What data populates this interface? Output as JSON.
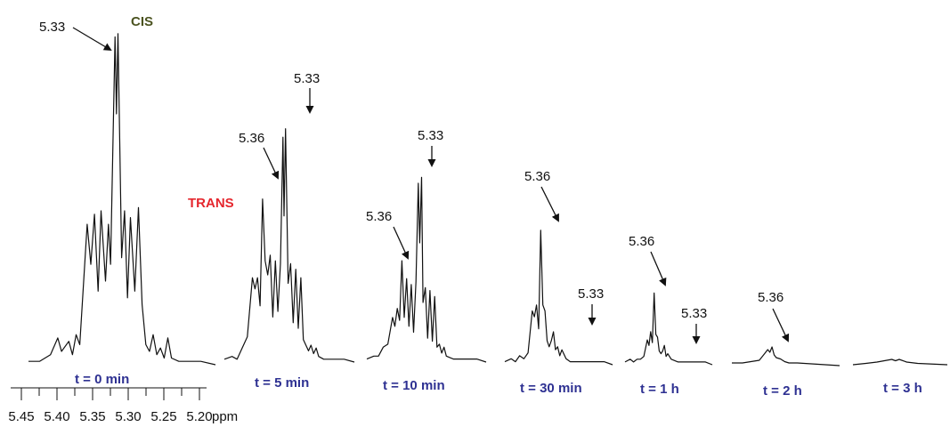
{
  "chart_data": {
    "type": "line",
    "title": "",
    "xlabel": "ppm",
    "ylabel": "",
    "axis": {
      "unit": "ppm",
      "ticks": [
        "5.45",
        "5.40",
        "5.35",
        "5.30",
        "5.25",
        "5.20"
      ],
      "xlim": [
        5.45,
        5.2
      ]
    },
    "isomer_labels": {
      "cis": "CIS",
      "trans": "TRANS",
      "cis_color": "#4b5320",
      "trans_color": "#e5262d"
    },
    "label_color": "#2e3192",
    "series": [
      {
        "time_label": "t = 0   min",
        "annotations": [
          "5.33"
        ],
        "points": [
          [
            5.455,
            0.01
          ],
          [
            5.44,
            0.01
          ],
          [
            5.425,
            0.03
          ],
          [
            5.415,
            0.08
          ],
          [
            5.41,
            0.04
          ],
          [
            5.4,
            0.07
          ],
          [
            5.395,
            0.03
          ],
          [
            5.39,
            0.09
          ],
          [
            5.385,
            0.06
          ],
          [
            5.375,
            0.42
          ],
          [
            5.37,
            0.3
          ],
          [
            5.365,
            0.45
          ],
          [
            5.36,
            0.22
          ],
          [
            5.356,
            0.46
          ],
          [
            5.35,
            0.25
          ],
          [
            5.346,
            0.42
          ],
          [
            5.343,
            0.3
          ],
          [
            5.337,
            0.98
          ],
          [
            5.335,
            0.75
          ],
          [
            5.333,
            0.99
          ],
          [
            5.328,
            0.32
          ],
          [
            5.324,
            0.46
          ],
          [
            5.32,
            0.2
          ],
          [
            5.316,
            0.44
          ],
          [
            5.31,
            0.22
          ],
          [
            5.305,
            0.47
          ],
          [
            5.3,
            0.18
          ],
          [
            5.295,
            0.06
          ],
          [
            5.29,
            0.04
          ],
          [
            5.285,
            0.09
          ],
          [
            5.28,
            0.03
          ],
          [
            5.275,
            0.05
          ],
          [
            5.27,
            0.02
          ],
          [
            5.265,
            0.08
          ],
          [
            5.26,
            0.02
          ],
          [
            5.25,
            0.01
          ],
          [
            5.22,
            0.01
          ],
          [
            5.2,
            0.0
          ]
        ]
      },
      {
        "time_label": "t = 5   min",
        "annotations": [
          "5.36",
          "5.33"
        ],
        "points": [
          [
            5.455,
            0.01
          ],
          [
            5.44,
            0.02
          ],
          [
            5.43,
            0.01
          ],
          [
            5.42,
            0.05
          ],
          [
            5.41,
            0.09
          ],
          [
            5.4,
            0.3
          ],
          [
            5.395,
            0.26
          ],
          [
            5.39,
            0.3
          ],
          [
            5.385,
            0.2
          ],
          [
            5.38,
            0.58
          ],
          [
            5.375,
            0.36
          ],
          [
            5.37,
            0.31
          ],
          [
            5.365,
            0.38
          ],
          [
            5.36,
            0.16
          ],
          [
            5.355,
            0.36
          ],
          [
            5.35,
            0.18
          ],
          [
            5.345,
            0.35
          ],
          [
            5.34,
            0.8
          ],
          [
            5.338,
            0.52
          ],
          [
            5.335,
            0.83
          ],
          [
            5.33,
            0.28
          ],
          [
            5.325,
            0.35
          ],
          [
            5.32,
            0.14
          ],
          [
            5.315,
            0.33
          ],
          [
            5.31,
            0.12
          ],
          [
            5.305,
            0.3
          ],
          [
            5.3,
            0.08
          ],
          [
            5.29,
            0.04
          ],
          [
            5.285,
            0.06
          ],
          [
            5.28,
            0.03
          ],
          [
            5.275,
            0.05
          ],
          [
            5.27,
            0.02
          ],
          [
            5.26,
            0.01
          ],
          [
            5.22,
            0.01
          ],
          [
            5.2,
            0.0
          ]
        ]
      },
      {
        "time_label": "t = 10   min",
        "annotations": [
          "5.36",
          "5.33"
        ],
        "points": [
          [
            5.455,
            0.01
          ],
          [
            5.44,
            0.02
          ],
          [
            5.43,
            0.02
          ],
          [
            5.42,
            0.05
          ],
          [
            5.41,
            0.06
          ],
          [
            5.4,
            0.15
          ],
          [
            5.395,
            0.12
          ],
          [
            5.39,
            0.18
          ],
          [
            5.385,
            0.14
          ],
          [
            5.38,
            0.34
          ],
          [
            5.375,
            0.15
          ],
          [
            5.37,
            0.28
          ],
          [
            5.365,
            0.12
          ],
          [
            5.36,
            0.26
          ],
          [
            5.355,
            0.1
          ],
          [
            5.35,
            0.27
          ],
          [
            5.345,
            0.6
          ],
          [
            5.342,
            0.4
          ],
          [
            5.338,
            0.62
          ],
          [
            5.335,
            0.2
          ],
          [
            5.33,
            0.25
          ],
          [
            5.325,
            0.08
          ],
          [
            5.32,
            0.24
          ],
          [
            5.315,
            0.07
          ],
          [
            5.31,
            0.22
          ],
          [
            5.305,
            0.05
          ],
          [
            5.3,
            0.06
          ],
          [
            5.295,
            0.03
          ],
          [
            5.29,
            0.05
          ],
          [
            5.285,
            0.02
          ],
          [
            5.27,
            0.01
          ],
          [
            5.22,
            0.01
          ],
          [
            5.2,
            0.0
          ]
        ]
      },
      {
        "time_label": "t = 30   min",
        "annotations": [
          "5.36",
          "5.33"
        ],
        "points": [
          [
            5.455,
            0.01
          ],
          [
            5.44,
            0.02
          ],
          [
            5.43,
            0.01
          ],
          [
            5.42,
            0.03
          ],
          [
            5.41,
            0.02
          ],
          [
            5.4,
            0.04
          ],
          [
            5.39,
            0.18
          ],
          [
            5.385,
            0.16
          ],
          [
            5.38,
            0.2
          ],
          [
            5.375,
            0.12
          ],
          [
            5.37,
            0.45
          ],
          [
            5.365,
            0.2
          ],
          [
            5.36,
            0.18
          ],
          [
            5.355,
            0.08
          ],
          [
            5.35,
            0.06
          ],
          [
            5.345,
            0.08
          ],
          [
            5.34,
            0.11
          ],
          [
            5.335,
            0.05
          ],
          [
            5.33,
            0.06
          ],
          [
            5.325,
            0.03
          ],
          [
            5.32,
            0.05
          ],
          [
            5.31,
            0.02
          ],
          [
            5.3,
            0.01
          ],
          [
            5.22,
            0.01
          ],
          [
            5.2,
            0.0
          ]
        ]
      },
      {
        "time_label": "t = 1 h",
        "annotations": [
          "5.36",
          "5.33"
        ],
        "points": [
          [
            5.455,
            0.01
          ],
          [
            5.44,
            0.02
          ],
          [
            5.43,
            0.01
          ],
          [
            5.42,
            0.02
          ],
          [
            5.41,
            0.02
          ],
          [
            5.4,
            0.03
          ],
          [
            5.39,
            0.09
          ],
          [
            5.385,
            0.07
          ],
          [
            5.38,
            0.12
          ],
          [
            5.375,
            0.08
          ],
          [
            5.37,
            0.26
          ],
          [
            5.365,
            0.11
          ],
          [
            5.36,
            0.1
          ],
          [
            5.355,
            0.05
          ],
          [
            5.35,
            0.04
          ],
          [
            5.345,
            0.05
          ],
          [
            5.34,
            0.07
          ],
          [
            5.335,
            0.03
          ],
          [
            5.33,
            0.04
          ],
          [
            5.32,
            0.02
          ],
          [
            5.3,
            0.01
          ],
          [
            5.22,
            0.01
          ],
          [
            5.2,
            0.0
          ]
        ]
      },
      {
        "time_label": "t = 2 h",
        "annotations": [
          "5.36"
        ],
        "points": [
          [
            5.455,
            0.01
          ],
          [
            5.43,
            0.01
          ],
          [
            5.41,
            0.015
          ],
          [
            5.39,
            0.02
          ],
          [
            5.38,
            0.04
          ],
          [
            5.37,
            0.06
          ],
          [
            5.365,
            0.05
          ],
          [
            5.36,
            0.07
          ],
          [
            5.355,
            0.04
          ],
          [
            5.35,
            0.03
          ],
          [
            5.34,
            0.025
          ],
          [
            5.33,
            0.015
          ],
          [
            5.32,
            0.01
          ],
          [
            5.3,
            0.01
          ],
          [
            5.2,
            0.0
          ]
        ]
      },
      {
        "time_label": "t = 3 h",
        "annotations": [],
        "points": [
          [
            5.455,
            0.0
          ],
          [
            5.42,
            0.005
          ],
          [
            5.39,
            0.01
          ],
          [
            5.37,
            0.015
          ],
          [
            5.35,
            0.02
          ],
          [
            5.34,
            0.015
          ],
          [
            5.33,
            0.02
          ],
          [
            5.31,
            0.01
          ],
          [
            5.28,
            0.005
          ],
          [
            5.2,
            0.0
          ]
        ]
      }
    ]
  }
}
